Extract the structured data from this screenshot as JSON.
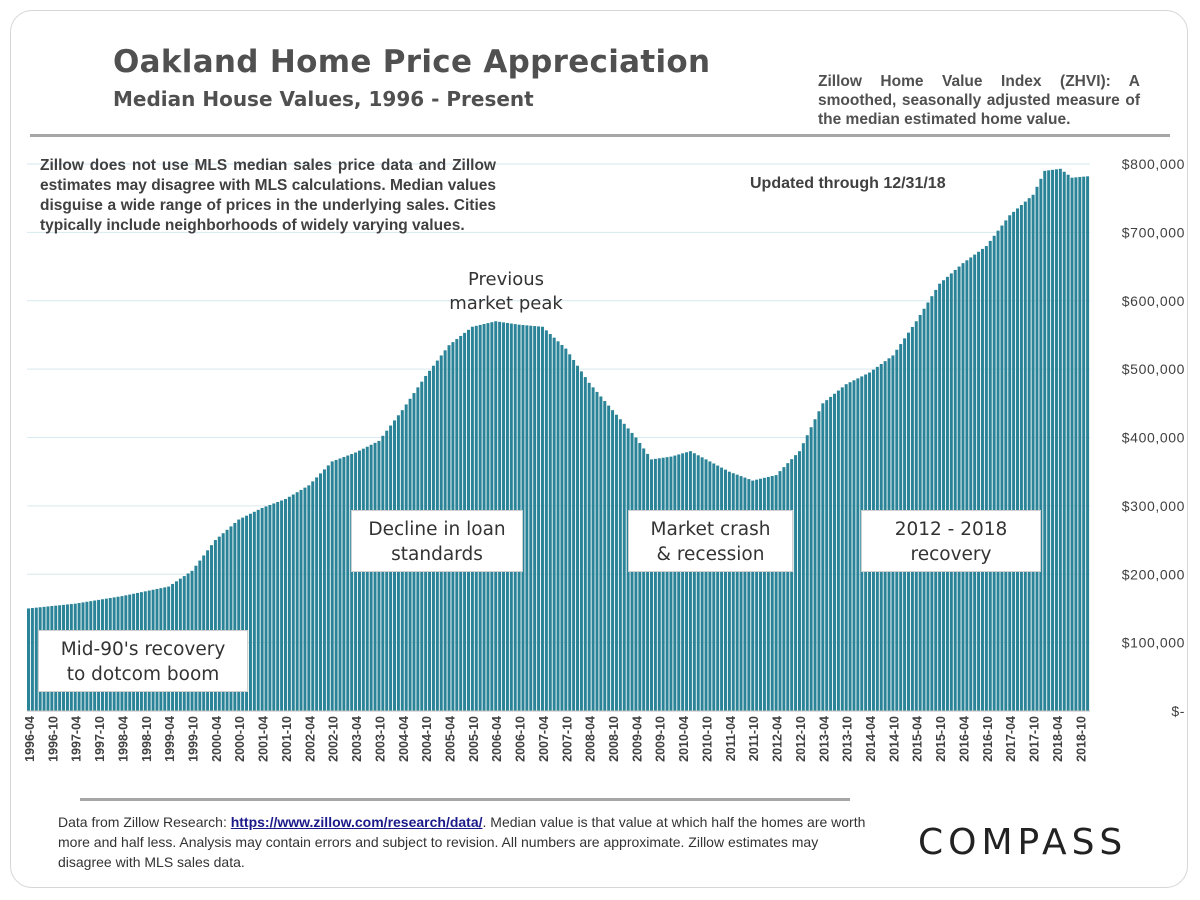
{
  "header": {
    "title": "Oakland Home Price Appreciation",
    "subtitle": "Median House Values, 1996 - Present",
    "zhvi_note": "Zillow Home Value Index (ZHVI): A smoothed, seasonally adjusted measure of the median estimated home value."
  },
  "disclaimer": "Zillow does not use MLS median sales price data and Zillow estimates may disagree with MLS calculations. Median values disguise a wide range of prices in the underlying sales. Cities typically include neighborhoods of widely varying values.",
  "updated": "Updated through 12/31/18",
  "annotations": {
    "peak": [
      "Previous",
      "market peak"
    ],
    "mid90s": [
      "Mid-90's recovery",
      "to dotcom boom"
    ],
    "decline": [
      "Decline in loan",
      "standards"
    ],
    "crash": [
      "Market crash",
      "& recession"
    ],
    "recovery": [
      "2012 - 2018",
      "recovery"
    ]
  },
  "footer": {
    "source_prefix": "Data from Zillow Research: ",
    "source_link": "https://www.zillow.com/research/data/",
    "source_suffix": ". Median value is that value at which half the homes are worth more and half less. Analysis may contain errors and subject to revision. All numbers are approximate. Zillow estimates may disagree with MLS sales data.",
    "logo": "COMPASS"
  },
  "chart_data": {
    "type": "bar",
    "title": "Oakland Home Price Appreciation",
    "subtitle": "Median House Values, 1996 - Present",
    "x_start": "1996-04",
    "x_end": "2018-12",
    "frequency": "monthly",
    "ylim": [
      0,
      800000
    ],
    "y_ticks": [
      0,
      100000,
      200000,
      300000,
      400000,
      500000,
      600000,
      700000,
      800000
    ],
    "y_tick_labels": [
      "$-",
      "$100,000",
      "$200,000",
      "$300,000",
      "$400,000",
      "$500,000",
      "$600,000",
      "$700,000",
      "$800,000"
    ],
    "x_tick_labels": [
      "1996-04",
      "1996-10",
      "1997-04",
      "1997-10",
      "1998-04",
      "1998-10",
      "1999-04",
      "1999-10",
      "2000-04",
      "2000-10",
      "2001-04",
      "2001-10",
      "2002-04",
      "2002-10",
      "2003-04",
      "2003-10",
      "2004-04",
      "2004-10",
      "2005-04",
      "2005-10",
      "2006-04",
      "2006-10",
      "2007-04",
      "2007-10",
      "2008-04",
      "2008-10",
      "2009-04",
      "2009-10",
      "2010-04",
      "2010-10",
      "2011-04",
      "2011-10",
      "2012-04",
      "2012-10",
      "2013-04",
      "2013-10",
      "2014-04",
      "2014-10",
      "2015-04",
      "2015-10",
      "2016-04",
      "2016-10",
      "2017-04",
      "2017-10",
      "2018-04",
      "2018-10"
    ],
    "grid": true,
    "bar_color": "#2a8397",
    "key_points": [
      {
        "date": "1996-04",
        "value": 150000
      },
      {
        "date": "1997-04",
        "value": 157000
      },
      {
        "date": "1998-04",
        "value": 168000
      },
      {
        "date": "1999-04",
        "value": 182000
      },
      {
        "date": "1999-10",
        "value": 205000
      },
      {
        "date": "2000-04",
        "value": 250000
      },
      {
        "date": "2000-10",
        "value": 280000
      },
      {
        "date": "2001-04",
        "value": 297000
      },
      {
        "date": "2001-10",
        "value": 310000
      },
      {
        "date": "2002-04",
        "value": 330000
      },
      {
        "date": "2002-10",
        "value": 365000
      },
      {
        "date": "2003-04",
        "value": 378000
      },
      {
        "date": "2003-10",
        "value": 395000
      },
      {
        "date": "2004-04",
        "value": 440000
      },
      {
        "date": "2004-10",
        "value": 490000
      },
      {
        "date": "2005-04",
        "value": 535000
      },
      {
        "date": "2005-10",
        "value": 562000
      },
      {
        "date": "2006-04",
        "value": 570000
      },
      {
        "date": "2006-10",
        "value": 565000
      },
      {
        "date": "2007-04",
        "value": 562000
      },
      {
        "date": "2007-10",
        "value": 530000
      },
      {
        "date": "2008-04",
        "value": 480000
      },
      {
        "date": "2008-10",
        "value": 440000
      },
      {
        "date": "2009-04",
        "value": 400000
      },
      {
        "date": "2009-08",
        "value": 368000
      },
      {
        "date": "2010-01",
        "value": 372000
      },
      {
        "date": "2010-06",
        "value": 380000
      },
      {
        "date": "2010-10",
        "value": 368000
      },
      {
        "date": "2011-04",
        "value": 350000
      },
      {
        "date": "2011-10",
        "value": 337000
      },
      {
        "date": "2012-04",
        "value": 345000
      },
      {
        "date": "2012-10",
        "value": 380000
      },
      {
        "date": "2013-04",
        "value": 450000
      },
      {
        "date": "2013-10",
        "value": 478000
      },
      {
        "date": "2014-04",
        "value": 495000
      },
      {
        "date": "2014-10",
        "value": 520000
      },
      {
        "date": "2015-04",
        "value": 570000
      },
      {
        "date": "2015-10",
        "value": 625000
      },
      {
        "date": "2016-04",
        "value": 655000
      },
      {
        "date": "2016-10",
        "value": 680000
      },
      {
        "date": "2017-04",
        "value": 725000
      },
      {
        "date": "2017-10",
        "value": 755000
      },
      {
        "date": "2018-01",
        "value": 790000
      },
      {
        "date": "2018-05",
        "value": 793000
      },
      {
        "date": "2018-08",
        "value": 780000
      },
      {
        "date": "2018-12",
        "value": 782000
      }
    ]
  }
}
